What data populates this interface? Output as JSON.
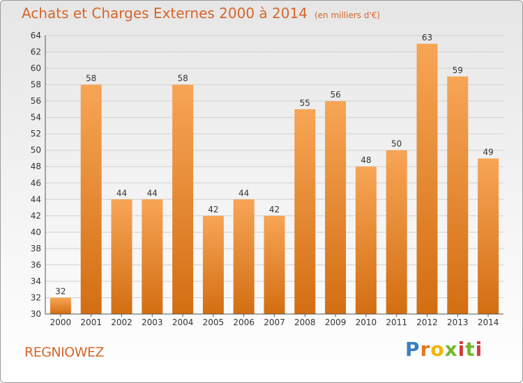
{
  "header": {
    "title": "Achats et Charges Externes 2000 à 2014",
    "unit": "(en milliers d'€)"
  },
  "footer": {
    "commune": "REGNIOWEZ",
    "logo": "Proxiti"
  },
  "colors": {
    "bar_top": "#f7a556",
    "bar_bottom": "#d36e12",
    "title": "#d4662a",
    "grid": "#d0d0d0"
  },
  "chart_data": {
    "type": "bar",
    "title": "Achats et Charges Externes 2000 à 2014",
    "subtitle": "(en milliers d'€)",
    "categories": [
      "2000",
      "2001",
      "2002",
      "2003",
      "2004",
      "2005",
      "2006",
      "2007",
      "2008",
      "2009",
      "2010",
      "2011",
      "2012",
      "2013",
      "2014"
    ],
    "values": [
      32,
      58,
      44,
      44,
      58,
      42,
      44,
      42,
      55,
      56,
      48,
      50,
      63,
      59,
      49
    ],
    "ylim": [
      30,
      64
    ],
    "yticks": [
      30,
      32,
      34,
      36,
      38,
      40,
      42,
      44,
      46,
      48,
      50,
      52,
      54,
      56,
      58,
      60,
      62,
      64
    ],
    "grid": true,
    "xlabel": "",
    "ylabel": ""
  }
}
